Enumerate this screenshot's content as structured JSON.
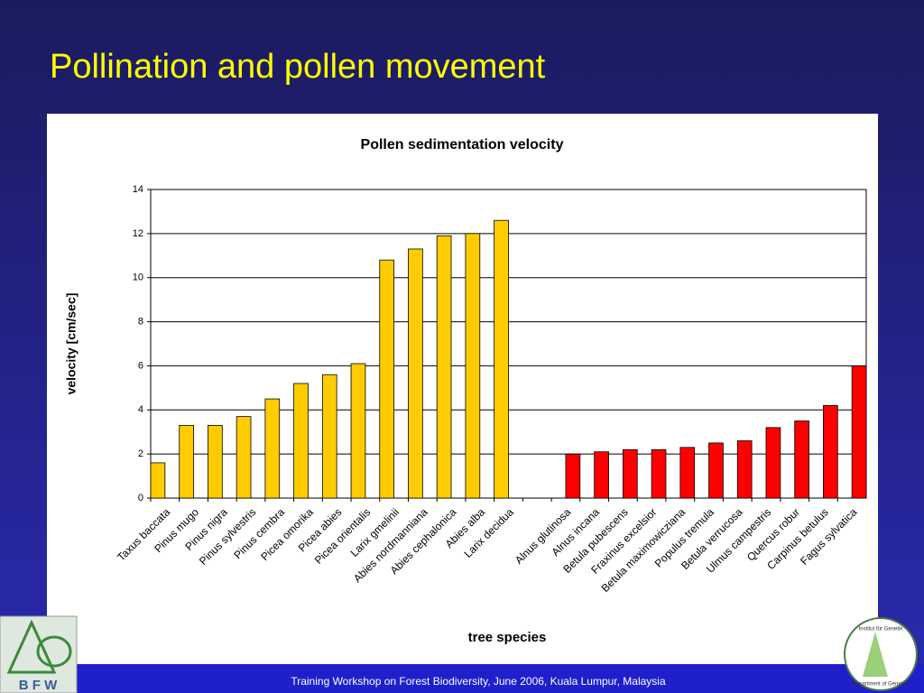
{
  "slide": {
    "title": "Pollination and pollen movement",
    "footer": "Training Workshop on Forest Biodiversity, June 2006, Kuala Lumpur, Malaysia"
  },
  "logos": {
    "left": "B F W",
    "right_top": "Institut für Genetik",
    "right_bottom": "Department of Genetics"
  },
  "chart_data": {
    "type": "bar",
    "title": "Pollen sedimentation velocity",
    "x_label": "tree species",
    "y_label": "velocity [cm/sec]",
    "categories": [
      "Taxus baccata",
      "Pinus mugo",
      "Pinus nigra",
      "Pinus sylvestris",
      "Pinus cembra",
      "Picea omorika",
      "Picea abies",
      "Picea orientalis",
      "Larix gmelinii",
      "Abies nordmanniana",
      "Abies cephalonica",
      "Abies alba",
      "Larix decidua",
      null,
      "Alnus glutinosa",
      "Alnus incana",
      "Betula pubescens",
      "Fraxinus excelsior",
      "Betula maximowicziana",
      "Populus tremula",
      "Betula verrucosa",
      "Ulmus campestris",
      "Quercus robur",
      "Carpinus betulus",
      "Fagus sylvatica"
    ],
    "series": [
      {
        "color": "#ffcc00",
        "values": [
          1.6,
          3.3,
          3.3,
          3.7,
          4.5,
          5.2,
          5.6,
          6.1,
          10.8,
          11.3,
          11.9,
          12.0,
          12.6,
          null,
          null,
          null,
          null,
          null,
          null,
          null,
          null,
          null,
          null,
          null,
          null
        ]
      },
      {
        "color": "#ff0000",
        "values": [
          null,
          null,
          null,
          null,
          null,
          null,
          null,
          null,
          null,
          null,
          null,
          null,
          null,
          null,
          2.0,
          2.1,
          2.2,
          2.2,
          2.3,
          2.5,
          2.6,
          3.2,
          3.5,
          4.2,
          6.0
        ]
      }
    ],
    "ylim": [
      0,
      14
    ],
    "yticks": [
      0,
      2,
      4,
      6,
      8,
      10,
      12,
      14
    ],
    "grid": true
  }
}
